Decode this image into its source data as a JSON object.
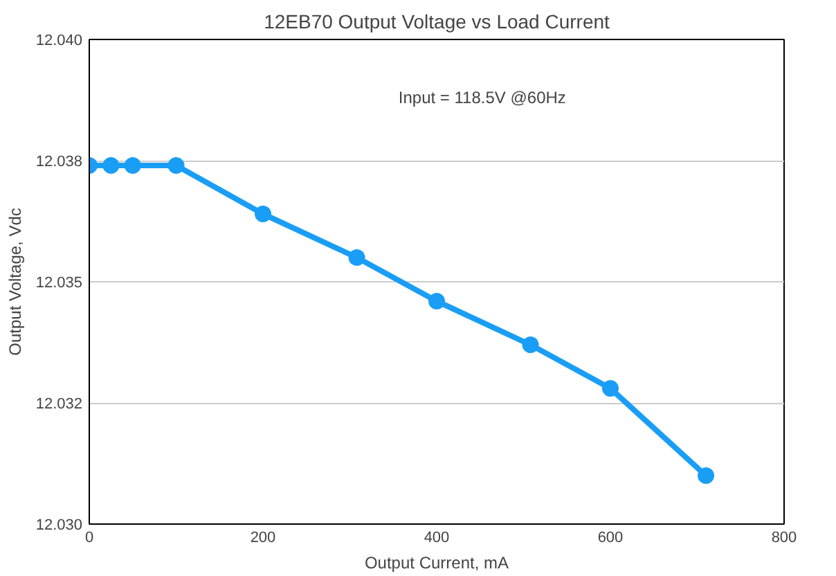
{
  "chart_data": {
    "type": "line",
    "title": "12EB70 Output Voltage vs Load Current",
    "xlabel": "Output Current, mA",
    "ylabel": "Output Voltage, Vdc",
    "x": [
      0,
      25,
      50,
      100,
      200,
      308,
      400,
      508,
      600,
      710
    ],
    "series": [
      {
        "color": "#1a9ef5",
        "values": [
          12.0374,
          12.0374,
          12.0374,
          12.0374,
          12.0364,
          12.0355,
          12.0346,
          12.0337,
          12.0328,
          12.031
        ]
      }
    ],
    "xlim": [
      0,
      800
    ],
    "xticks": [
      0,
      200,
      400,
      600,
      800
    ],
    "ylim": [
      12.03,
      12.04
    ],
    "yticks": [
      {
        "value": 12.03,
        "label": "12.030"
      },
      {
        "value": 12.0325,
        "label": "12.032"
      },
      12.035,
      {
        "value": 12.0375,
        "label": "12.038"
      },
      {
        "value": 12.04,
        "label": "12.040"
      }
    ],
    "annotations": [
      "Input = 118.5V @60Hz"
    ],
    "grid": "y",
    "marker": "circle",
    "line_style": "solid"
  }
}
